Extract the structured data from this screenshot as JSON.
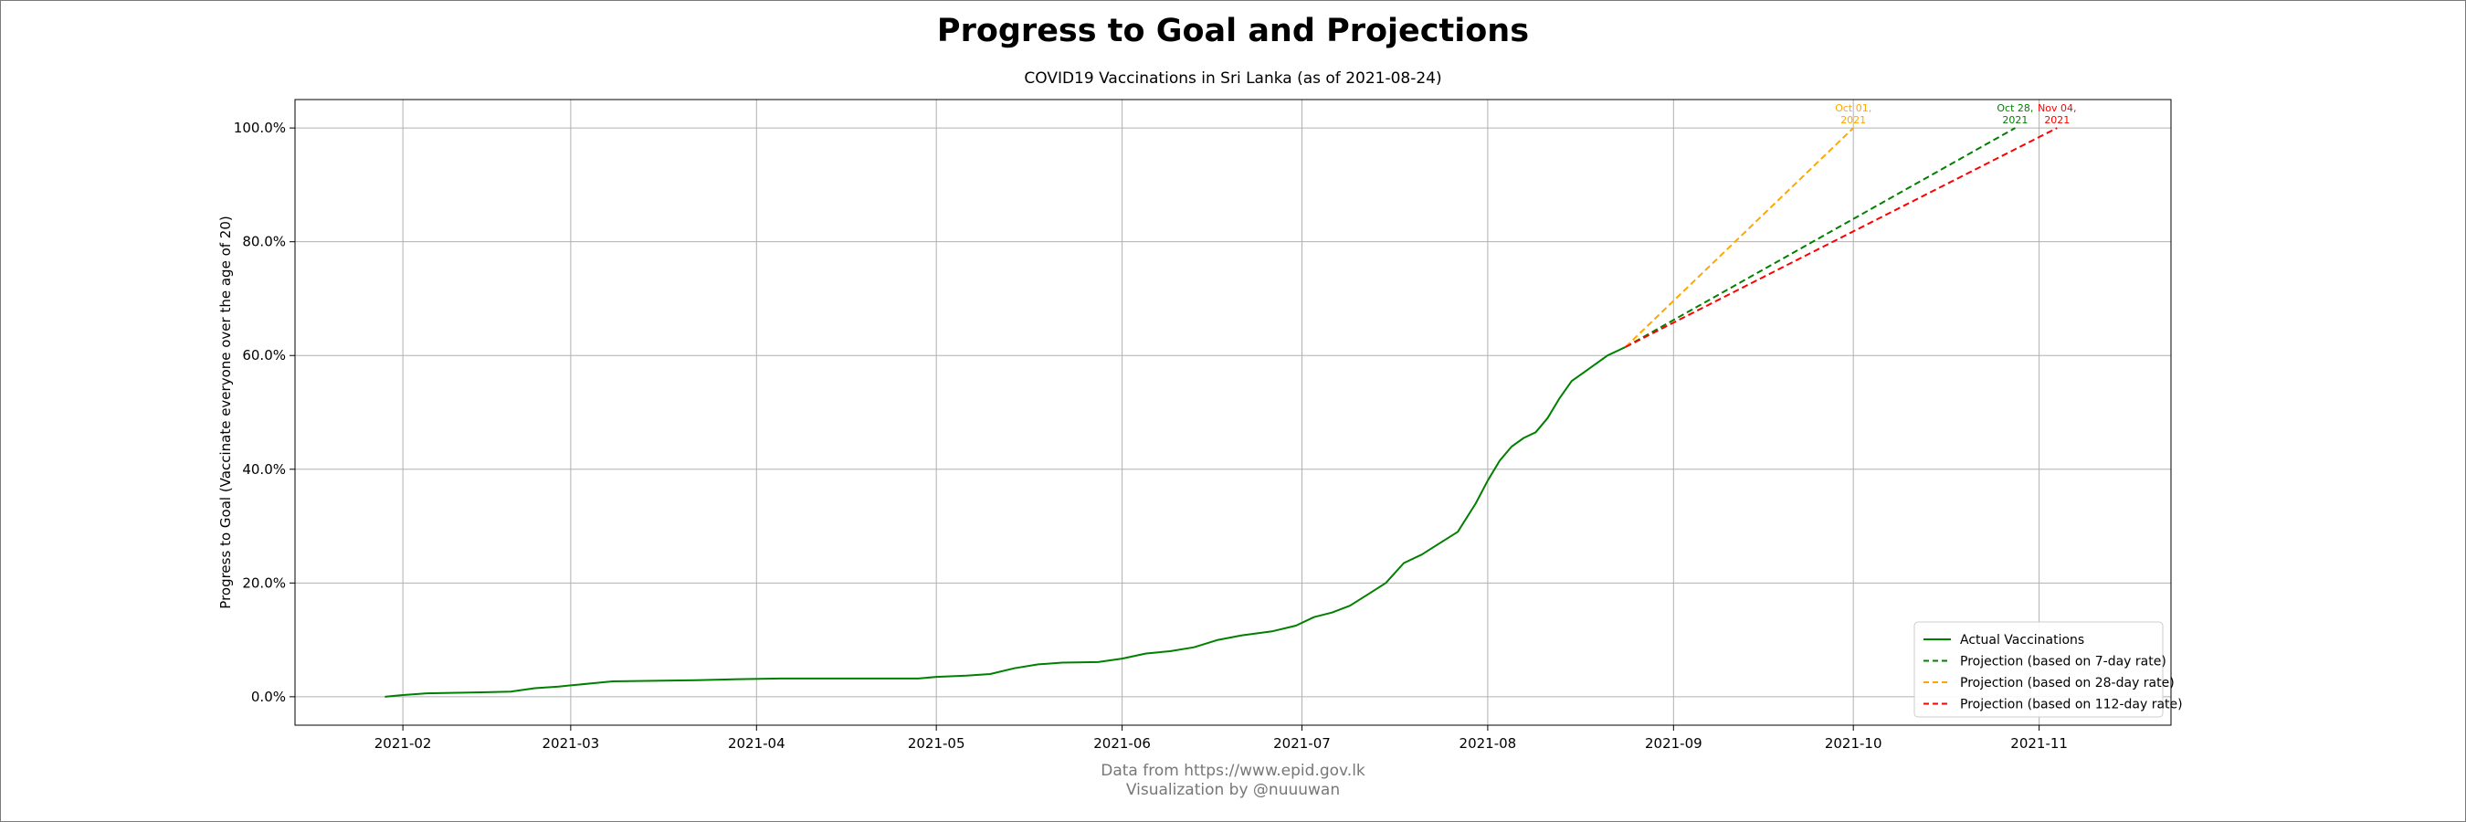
{
  "header": {
    "title": "Progress to Goal and Projections",
    "subtitle": "COVID19 Vaccinations in Sri Lanka (as of 2021-08-24)"
  },
  "footer": {
    "source": "Data from https://www.epid.gov.lk",
    "credit": "Visualization by @nuuuwan"
  },
  "chart_data": {
    "type": "line",
    "title": "Progress to Goal and Projections",
    "subtitle": "COVID19 Vaccinations in Sri Lanka (as of 2021-08-24)",
    "xlabel": "",
    "ylabel": "Progress to Goal (Vaccinate everyone over the age of 20)",
    "xlim": [
      "2021-01-14",
      "2021-11-23"
    ],
    "ylim": [
      -0.05,
      1.05
    ],
    "x_ticks": [
      "2021-02-01",
      "2021-03-01",
      "2021-04-01",
      "2021-05-01",
      "2021-06-01",
      "2021-07-01",
      "2021-08-01",
      "2021-09-01",
      "2021-10-01",
      "2021-11-01"
    ],
    "x_tick_labels": [
      "2021-02",
      "2021-03",
      "2021-04",
      "2021-05",
      "2021-06",
      "2021-07",
      "2021-08",
      "2021-09",
      "2021-10",
      "2021-11"
    ],
    "y_ticks": [
      0,
      0.2,
      0.4,
      0.6,
      0.8,
      1.0
    ],
    "y_tick_labels": [
      "0.0%",
      "20.0%",
      "40.0%",
      "60.0%",
      "80.0%",
      "100.0%"
    ],
    "grid": true,
    "legend_position": "lower right",
    "series": [
      {
        "name": "Actual Vaccinations",
        "style": "solid",
        "color": "#008000",
        "points": [
          [
            "2021-01-29",
            0.0
          ],
          [
            "2021-02-01",
            0.003
          ],
          [
            "2021-02-05",
            0.006
          ],
          [
            "2021-02-10",
            0.007
          ],
          [
            "2021-02-15",
            0.008
          ],
          [
            "2021-02-19",
            0.009
          ],
          [
            "2021-02-23",
            0.015
          ],
          [
            "2021-02-27",
            0.018
          ],
          [
            "2021-03-01",
            0.02
          ],
          [
            "2021-03-05",
            0.024
          ],
          [
            "2021-03-08",
            0.027
          ],
          [
            "2021-03-15",
            0.028
          ],
          [
            "2021-03-22",
            0.029
          ],
          [
            "2021-03-29",
            0.031
          ],
          [
            "2021-04-05",
            0.032
          ],
          [
            "2021-04-15",
            0.032
          ],
          [
            "2021-04-28",
            0.032
          ],
          [
            "2021-05-01",
            0.035
          ],
          [
            "2021-05-06",
            0.037
          ],
          [
            "2021-05-10",
            0.04
          ],
          [
            "2021-05-14",
            0.05
          ],
          [
            "2021-05-18",
            0.057
          ],
          [
            "2021-05-22",
            0.06
          ],
          [
            "2021-05-28",
            0.061
          ],
          [
            "2021-06-01",
            0.067
          ],
          [
            "2021-06-05",
            0.076
          ],
          [
            "2021-06-09",
            0.08
          ],
          [
            "2021-06-13",
            0.087
          ],
          [
            "2021-06-17",
            0.1
          ],
          [
            "2021-06-21",
            0.108
          ],
          [
            "2021-06-26",
            0.115
          ],
          [
            "2021-06-30",
            0.125
          ],
          [
            "2021-07-03",
            0.14
          ],
          [
            "2021-07-06",
            0.148
          ],
          [
            "2021-07-09",
            0.16
          ],
          [
            "2021-07-12",
            0.18
          ],
          [
            "2021-07-15",
            0.2
          ],
          [
            "2021-07-18",
            0.235
          ],
          [
            "2021-07-21",
            0.25
          ],
          [
            "2021-07-24",
            0.27
          ],
          [
            "2021-07-27",
            0.29
          ],
          [
            "2021-07-30",
            0.34
          ],
          [
            "2021-08-01",
            0.38
          ],
          [
            "2021-08-03",
            0.415
          ],
          [
            "2021-08-05",
            0.44
          ],
          [
            "2021-08-07",
            0.455
          ],
          [
            "2021-08-09",
            0.465
          ],
          [
            "2021-08-11",
            0.49
          ],
          [
            "2021-08-13",
            0.525
          ],
          [
            "2021-08-15",
            0.555
          ],
          [
            "2021-08-17",
            0.57
          ],
          [
            "2021-08-19",
            0.585
          ],
          [
            "2021-08-21",
            0.6
          ],
          [
            "2021-08-23",
            0.61
          ],
          [
            "2021-08-24",
            0.615
          ]
        ]
      },
      {
        "name": "Projection (based on 7-day rate)",
        "style": "dashed",
        "color": "#008000",
        "points": [
          [
            "2021-08-24",
            0.615
          ],
          [
            "2021-10-28",
            1.0
          ]
        ],
        "annotation": "Oct 28,\n2021"
      },
      {
        "name": "Projection (based on 28-day rate)",
        "style": "dashed",
        "color": "#ffa500",
        "points": [
          [
            "2021-08-24",
            0.615
          ],
          [
            "2021-10-01",
            1.0
          ]
        ],
        "annotation": "Oct 01,\n2021"
      },
      {
        "name": "Projection (based on 112-day rate)",
        "style": "dashed",
        "color": "#ff0000",
        "points": [
          [
            "2021-08-24",
            0.615
          ],
          [
            "2021-11-04",
            1.0
          ]
        ],
        "annotation": "Nov 04,\n2021"
      }
    ]
  }
}
